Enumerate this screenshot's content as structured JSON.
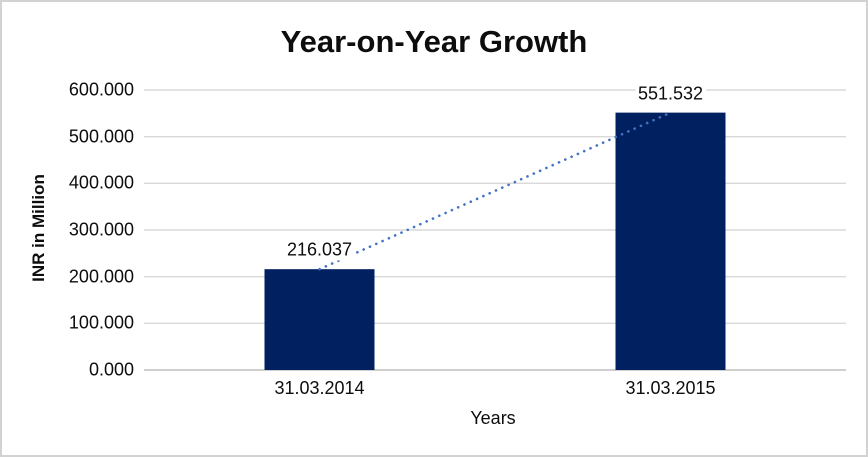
{
  "window": {
    "background": "#ffffff",
    "border_color": "#d2d2d2"
  },
  "chart_data": {
    "type": "bar",
    "title": "Year-on-Year Growth",
    "xlabel": "Years",
    "ylabel": "INR in Million",
    "categories": [
      "31.03.2014",
      "31.03.2015"
    ],
    "values": [
      216.037,
      551.532
    ],
    "data_labels": [
      "216.037",
      "551.532"
    ],
    "ylim": [
      0,
      600
    ],
    "ytick_interval": 100,
    "ytick_labels": [
      "0.000",
      "100.000",
      "200.000",
      "300.000",
      "400.000",
      "500.000",
      "600.000"
    ],
    "grid": true,
    "legend_position": "none",
    "trendline": {
      "type": "linear",
      "style": "dotted",
      "color": "#4472c4",
      "from_value": 216.037,
      "to_value": 551.532
    },
    "colors": {
      "bar_fill": "#002060",
      "gridline": "#d9d9d9",
      "axis_line": "#d0cece",
      "text": "#0d0d0d",
      "background": "#ffffff"
    }
  }
}
